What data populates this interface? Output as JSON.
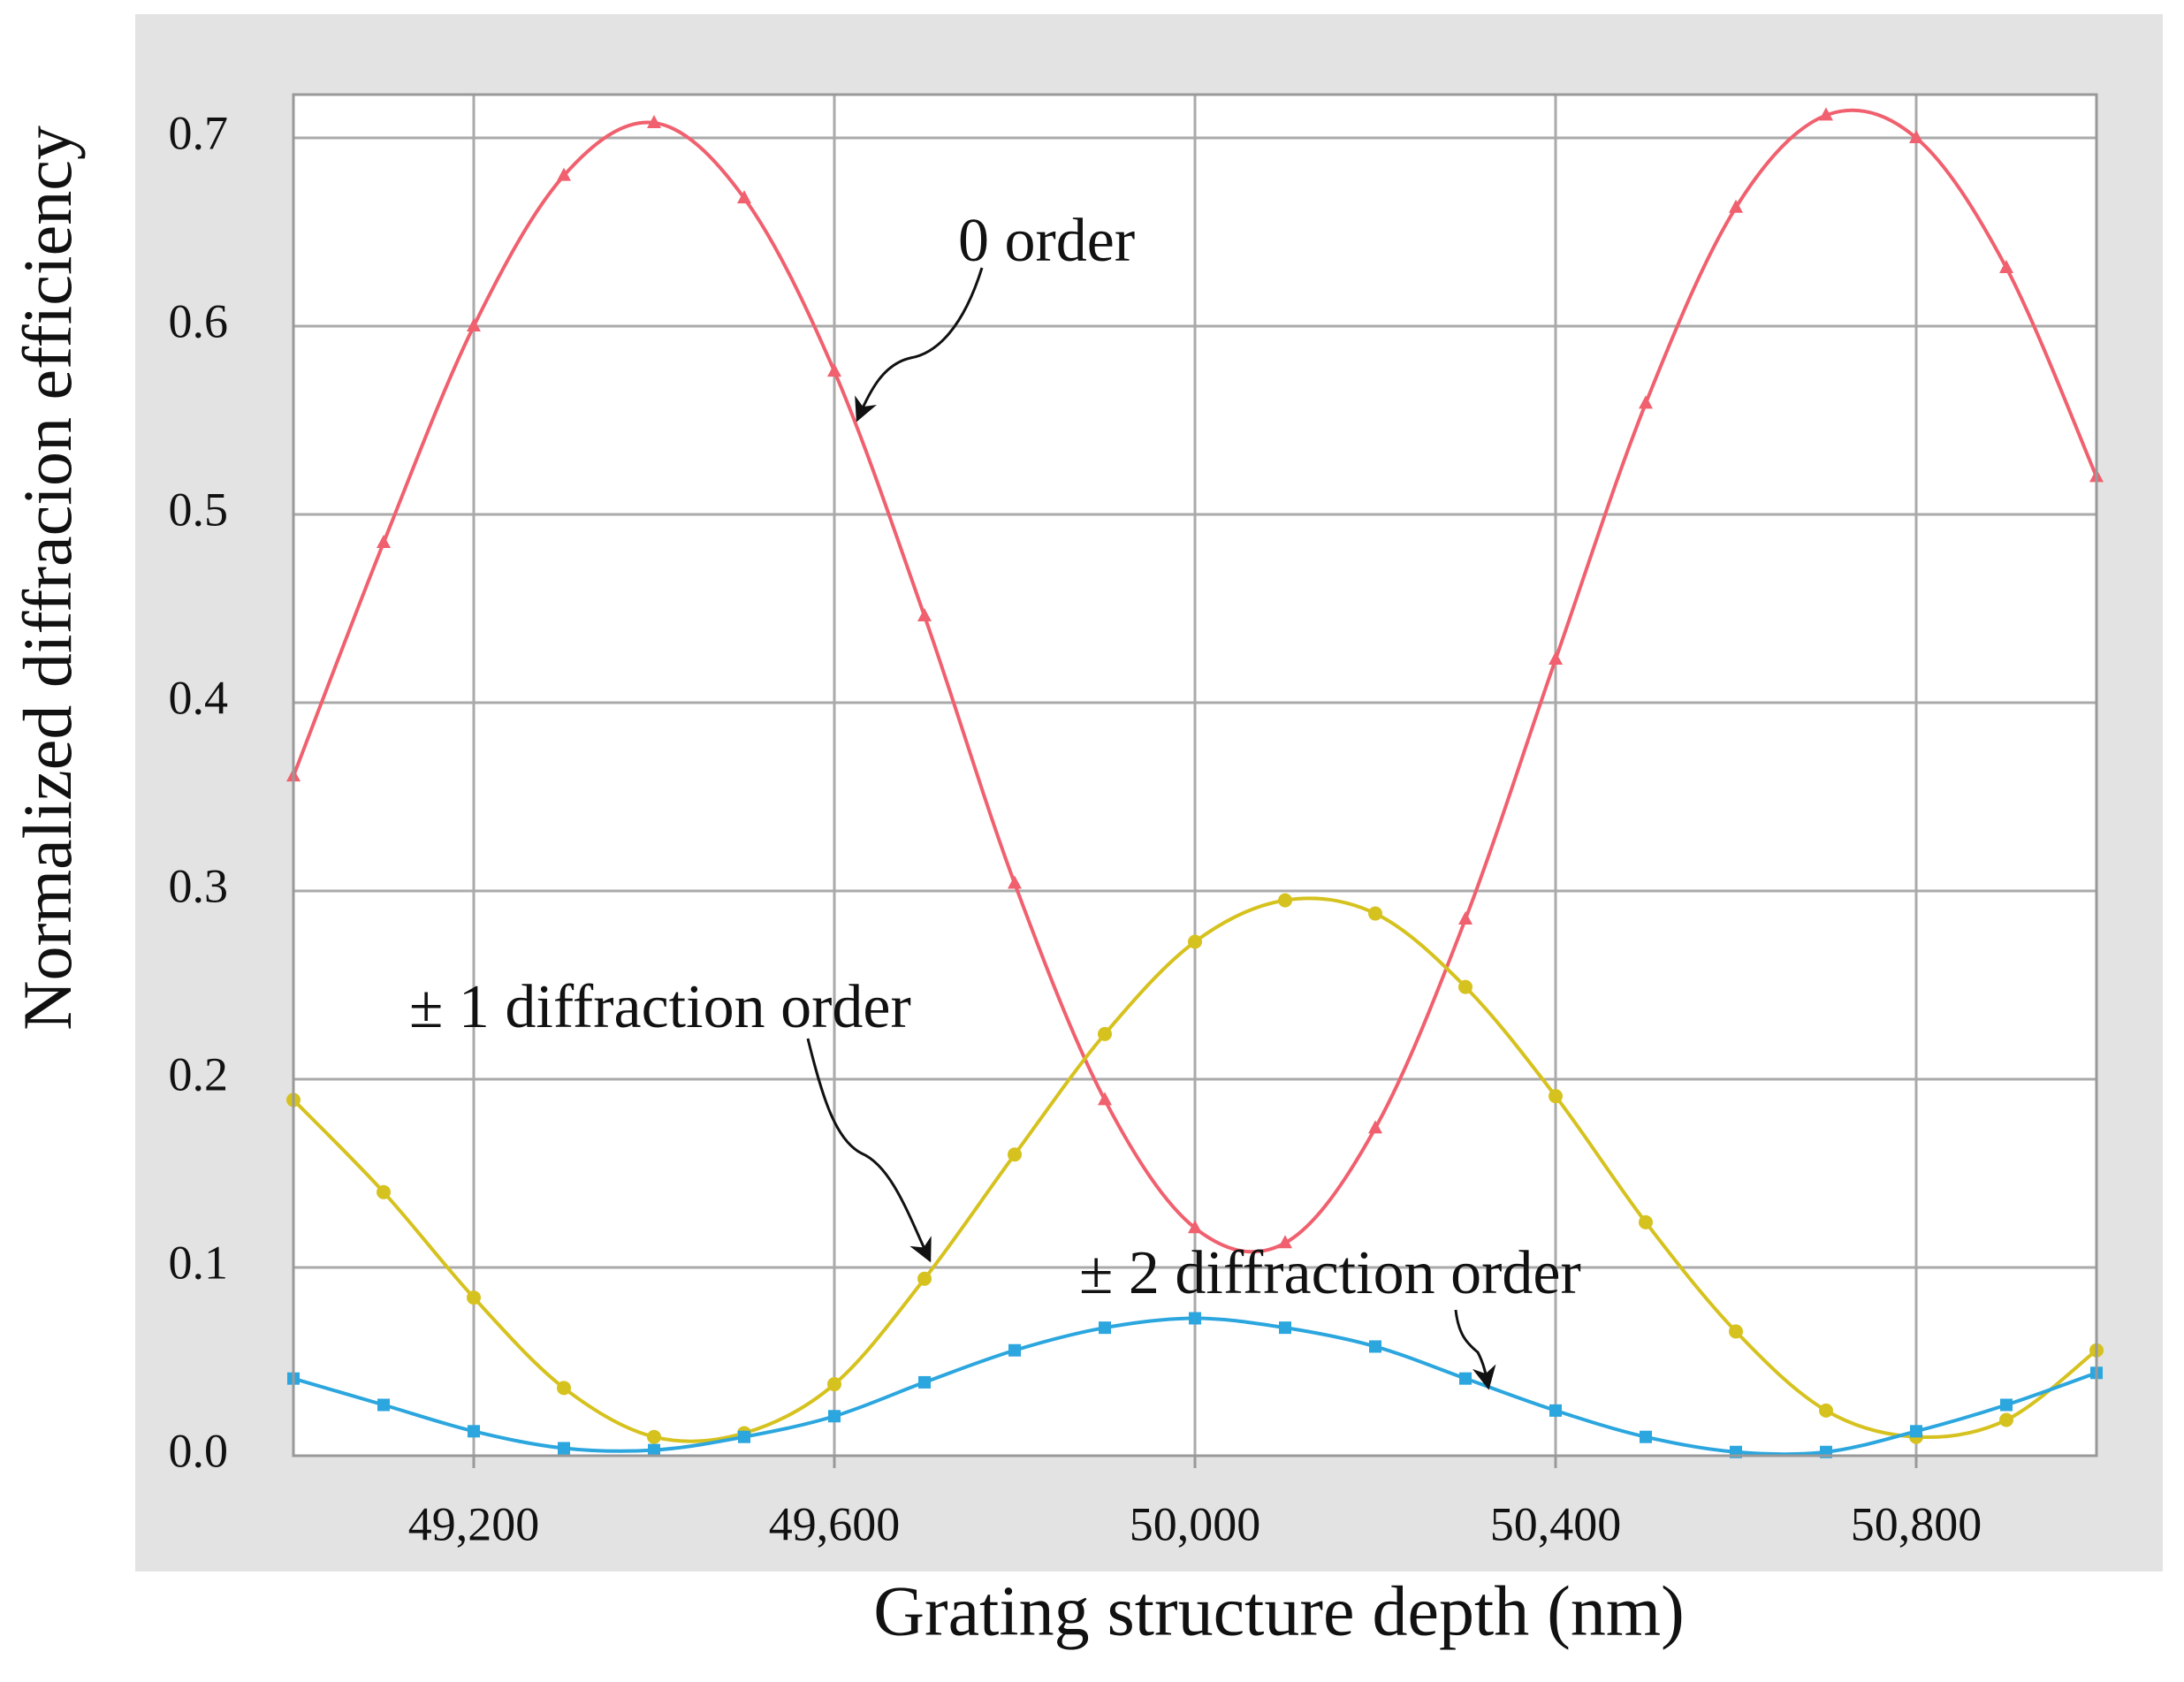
{
  "chart_data": {
    "type": "line",
    "x_label": "Grating structure depth (nm)",
    "y_label": "Normalized diffracion efficiency",
    "x": [
      49000,
      49100,
      49200,
      49300,
      49400,
      49500,
      49600,
      49700,
      49800,
      49900,
      50000,
      50100,
      50200,
      50300,
      50400,
      50500,
      50600,
      50700,
      50800,
      50900,
      51000
    ],
    "series": [
      {
        "name": "0 order",
        "color": "#f0606e",
        "marker": "triangle",
        "values": [
          0.361,
          0.485,
          0.6,
          0.68,
          0.708,
          0.668,
          0.576,
          0.446,
          0.304,
          0.189,
          0.121,
          0.113,
          0.174,
          0.285,
          0.423,
          0.559,
          0.663,
          0.712,
          0.7,
          0.631,
          0.52
        ]
      },
      {
        "name": "± 1 diffraction order",
        "color": "#d6c21e",
        "marker": "circle",
        "values": [
          0.189,
          0.14,
          0.084,
          0.036,
          0.01,
          0.012,
          0.038,
          0.094,
          0.16,
          0.224,
          0.273,
          0.295,
          0.288,
          0.249,
          0.191,
          0.124,
          0.066,
          0.024,
          0.01,
          0.019,
          0.056
        ]
      },
      {
        "name": "± 2 diffraction order",
        "color": "#2ba6de",
        "marker": "square",
        "values": [
          0.041,
          0.027,
          0.013,
          0.004,
          0.003,
          0.01,
          0.021,
          0.039,
          0.056,
          0.068,
          0.073,
          0.068,
          0.058,
          0.041,
          0.024,
          0.01,
          0.002,
          0.002,
          0.013,
          0.027,
          0.044
        ]
      }
    ],
    "xlim": [
      49000,
      51000
    ],
    "xticks": [
      {
        "value": 49200,
        "label": "49,200"
      },
      {
        "value": 49600,
        "label": "49,600"
      },
      {
        "value": 50000,
        "label": "50,000"
      },
      {
        "value": 50400,
        "label": "50,400"
      },
      {
        "value": 50800,
        "label": "50,800"
      }
    ],
    "ylim": [
      0,
      0.723
    ],
    "yticks": [
      {
        "value": 0,
        "label": "0.0"
      },
      0.1,
      0.2,
      0.3,
      0.4,
      0.5,
      0.6,
      0.7
    ],
    "grid": true
  }
}
